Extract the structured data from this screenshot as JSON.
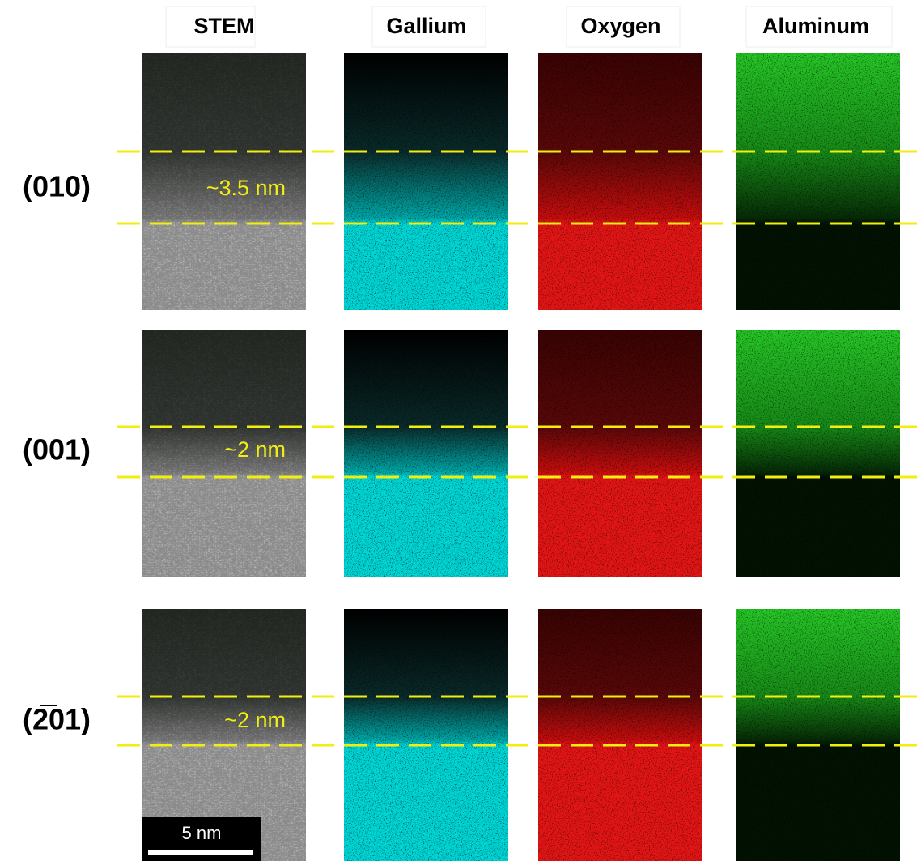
{
  "columns": [
    "STEM",
    "Gallium",
    "Oxygen",
    "Aluminum"
  ],
  "rows": [
    {
      "label": "(010)",
      "thickness": "~3.5 nm"
    },
    {
      "label": "(001)",
      "thickness": "~2 nm"
    },
    {
      "label": "(2̅01)",
      "thickness": "~2 nm"
    }
  ],
  "scale_bar": "5 nm"
}
